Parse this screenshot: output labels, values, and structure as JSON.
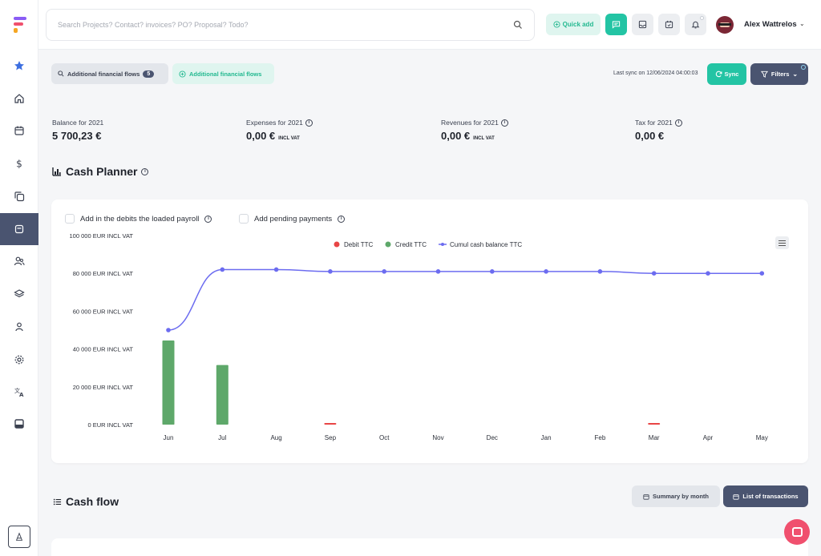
{
  "sidebar": {
    "items": [
      {
        "name": "star-icon",
        "active": false
      },
      {
        "name": "home-icon",
        "active": false
      },
      {
        "name": "calendar-icon",
        "active": false
      },
      {
        "name": "dollar-icon",
        "active": false
      },
      {
        "name": "copy-icon",
        "active": false
      },
      {
        "name": "wallet-icon",
        "active": true
      },
      {
        "name": "users-icon",
        "active": false
      },
      {
        "name": "layers-icon",
        "active": false
      },
      {
        "name": "user-icon",
        "active": false
      },
      {
        "name": "gear-icon",
        "active": false
      },
      {
        "name": "translate-icon",
        "active": false
      },
      {
        "name": "inbox-icon",
        "active": false
      }
    ],
    "accent": "#4a5470"
  },
  "header": {
    "search_placeholder": "Search Projects? Contact? invoices? PO? Proposal? Todo?",
    "quick_add": "Quick add",
    "user_name": "Alex Wattrelos"
  },
  "toolbar": {
    "chip_filter_label": "Additional financial flows",
    "chip_filter_count": "5",
    "chip_add_label": "Additional financial flows",
    "last_sync": "Last sync on 12/06/2024 04:00:03",
    "sync": "Sync",
    "filters": "Filters"
  },
  "stats": [
    {
      "label": "Balance for 2021",
      "value": "5 700,23 €",
      "unit": "",
      "info": false
    },
    {
      "label": "Expenses for 2021",
      "value": "0,00 €",
      "unit": "INCL VAT",
      "info": true
    },
    {
      "label": "Revenues for 2021",
      "value": "0,00 €",
      "unit": "INCL VAT",
      "info": true
    },
    {
      "label": "Tax for 2021",
      "value": "0,00 €",
      "unit": "",
      "info": true
    }
  ],
  "cash_planner": {
    "title": "Cash Planner",
    "option_payroll": "Add in the debits the loaded payroll",
    "option_pending": "Add pending payments"
  },
  "chart_data": {
    "type": "bar",
    "categories": [
      "Jun",
      "Jul",
      "Aug",
      "Sep",
      "Oct",
      "Nov",
      "Dec",
      "Jan",
      "Feb",
      "Mar",
      "Apr",
      "May"
    ],
    "series": [
      {
        "name": "Debit TTC",
        "type": "bar",
        "color": "#e84545",
        "values": [
          300,
          0,
          0,
          500,
          0,
          0,
          0,
          0,
          0,
          500,
          0,
          0
        ]
      },
      {
        "name": "Credit TTC",
        "type": "bar",
        "color": "#5ea86a",
        "values": [
          44500,
          31500,
          0,
          0,
          0,
          0,
          0,
          0,
          0,
          0,
          0,
          0
        ]
      },
      {
        "name": "Cumul cash balance TTC",
        "type": "line",
        "color": "#6c6cf0",
        "values": [
          50000,
          82000,
          82000,
          81000,
          81000,
          81000,
          81000,
          81000,
          81000,
          80000,
          80000,
          80000
        ]
      }
    ],
    "y_ticks": [
      "0 EUR INCL VAT",
      "20 000 EUR INCL VAT",
      "40 000 EUR INCL VAT",
      "60 000 EUR INCL VAT",
      "80 000 EUR INCL VAT",
      "100 000 EUR INCL VAT"
    ],
    "ylim": [
      0,
      100000
    ],
    "legend_position": "top-center",
    "grid": false
  },
  "cash_flow": {
    "title": "Cash flow",
    "summary_btn": "Summary by month",
    "transactions_btn": "List of transactions"
  }
}
